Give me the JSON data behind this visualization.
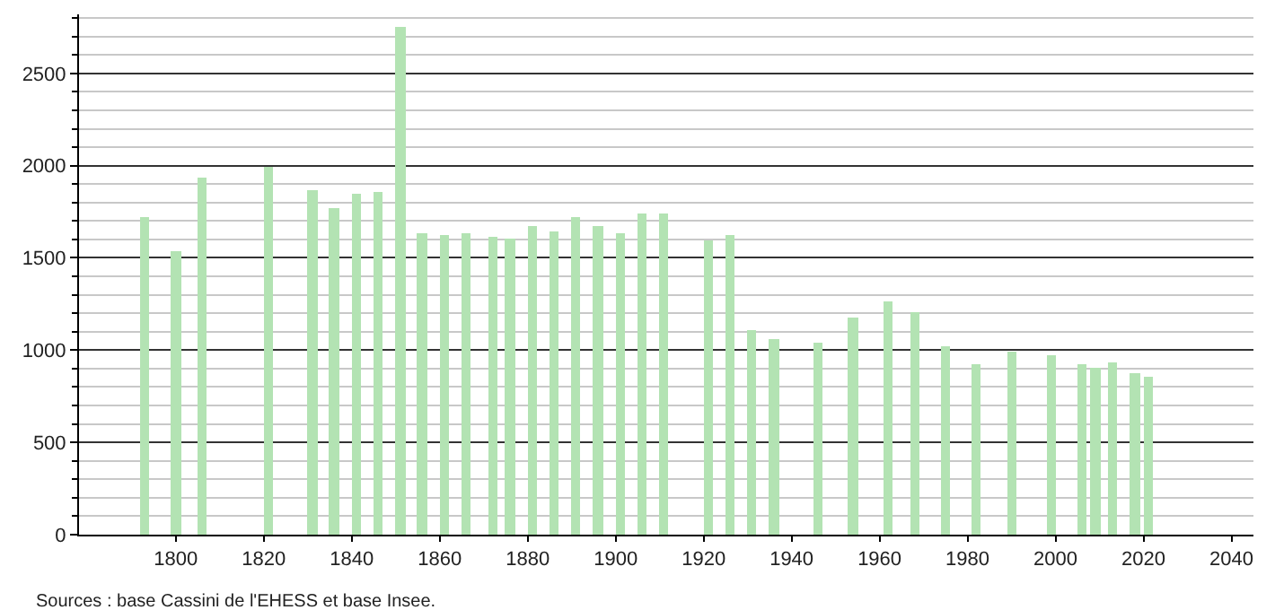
{
  "chart_data": {
    "type": "bar",
    "x": [
      1793,
      1800,
      1806,
      1821,
      1831,
      1836,
      1841,
      1846,
      1851,
      1856,
      1861,
      1866,
      1872,
      1876,
      1881,
      1886,
      1891,
      1896,
      1901,
      1906,
      1911,
      1921,
      1926,
      1931,
      1936,
      1946,
      1954,
      1962,
      1968,
      1975,
      1982,
      1990,
      1999,
      2006,
      2009,
      2013,
      2018,
      2021
    ],
    "values": [
      1720,
      1540,
      1940,
      1990,
      1870,
      1770,
      1850,
      1860,
      2750,
      1630,
      1620,
      1630,
      1610,
      1600,
      1670,
      1640,
      1720,
      1670,
      1630,
      1740,
      1740,
      1590,
      1620,
      1110,
      1060,
      1040,
      1180,
      1260,
      1210,
      1020,
      920,
      990,
      970,
      920,
      900,
      930,
      880,
      860
    ],
    "color": "#b3e3b3",
    "xlim": [
      1778,
      2045
    ],
    "xticks": [
      1800,
      1820,
      1840,
      1860,
      1880,
      1900,
      1920,
      1940,
      1960,
      1980,
      2000,
      2020,
      2040
    ],
    "ylim": [
      0,
      2820
    ],
    "yticks": [
      0,
      {
        "value": 100,
        "label": null
      },
      {
        "value": 200,
        "label": null
      },
      {
        "value": 300,
        "label": null
      },
      {
        "value": 400,
        "label": null
      },
      500,
      {
        "value": 600,
        "label": null
      },
      {
        "value": 700,
        "label": null
      },
      {
        "value": 800,
        "label": null
      },
      {
        "value": 900,
        "label": null
      },
      1000,
      {
        "value": 1100,
        "label": null
      },
      {
        "value": 1200,
        "label": null
      },
      {
        "value": 1300,
        "label": null
      },
      {
        "value": 1400,
        "label": null
      },
      1500,
      {
        "value": 1600,
        "label": null
      },
      {
        "value": 1700,
        "label": null
      },
      {
        "value": 1800,
        "label": null
      },
      {
        "value": 1900,
        "label": null
      },
      2000,
      {
        "value": 2100,
        "label": null
      },
      {
        "value": 2200,
        "label": null
      },
      {
        "value": 2300,
        "label": null
      },
      {
        "value": 2400,
        "label": null
      },
      2500,
      {
        "value": 2600,
        "label": null
      },
      {
        "value": 2700,
        "label": null
      },
      {
        "value": 2800,
        "label": null
      }
    ],
    "grid": "y",
    "annotations": [
      "Sources : base Cassini de l'EHESS et base Insee."
    ]
  }
}
